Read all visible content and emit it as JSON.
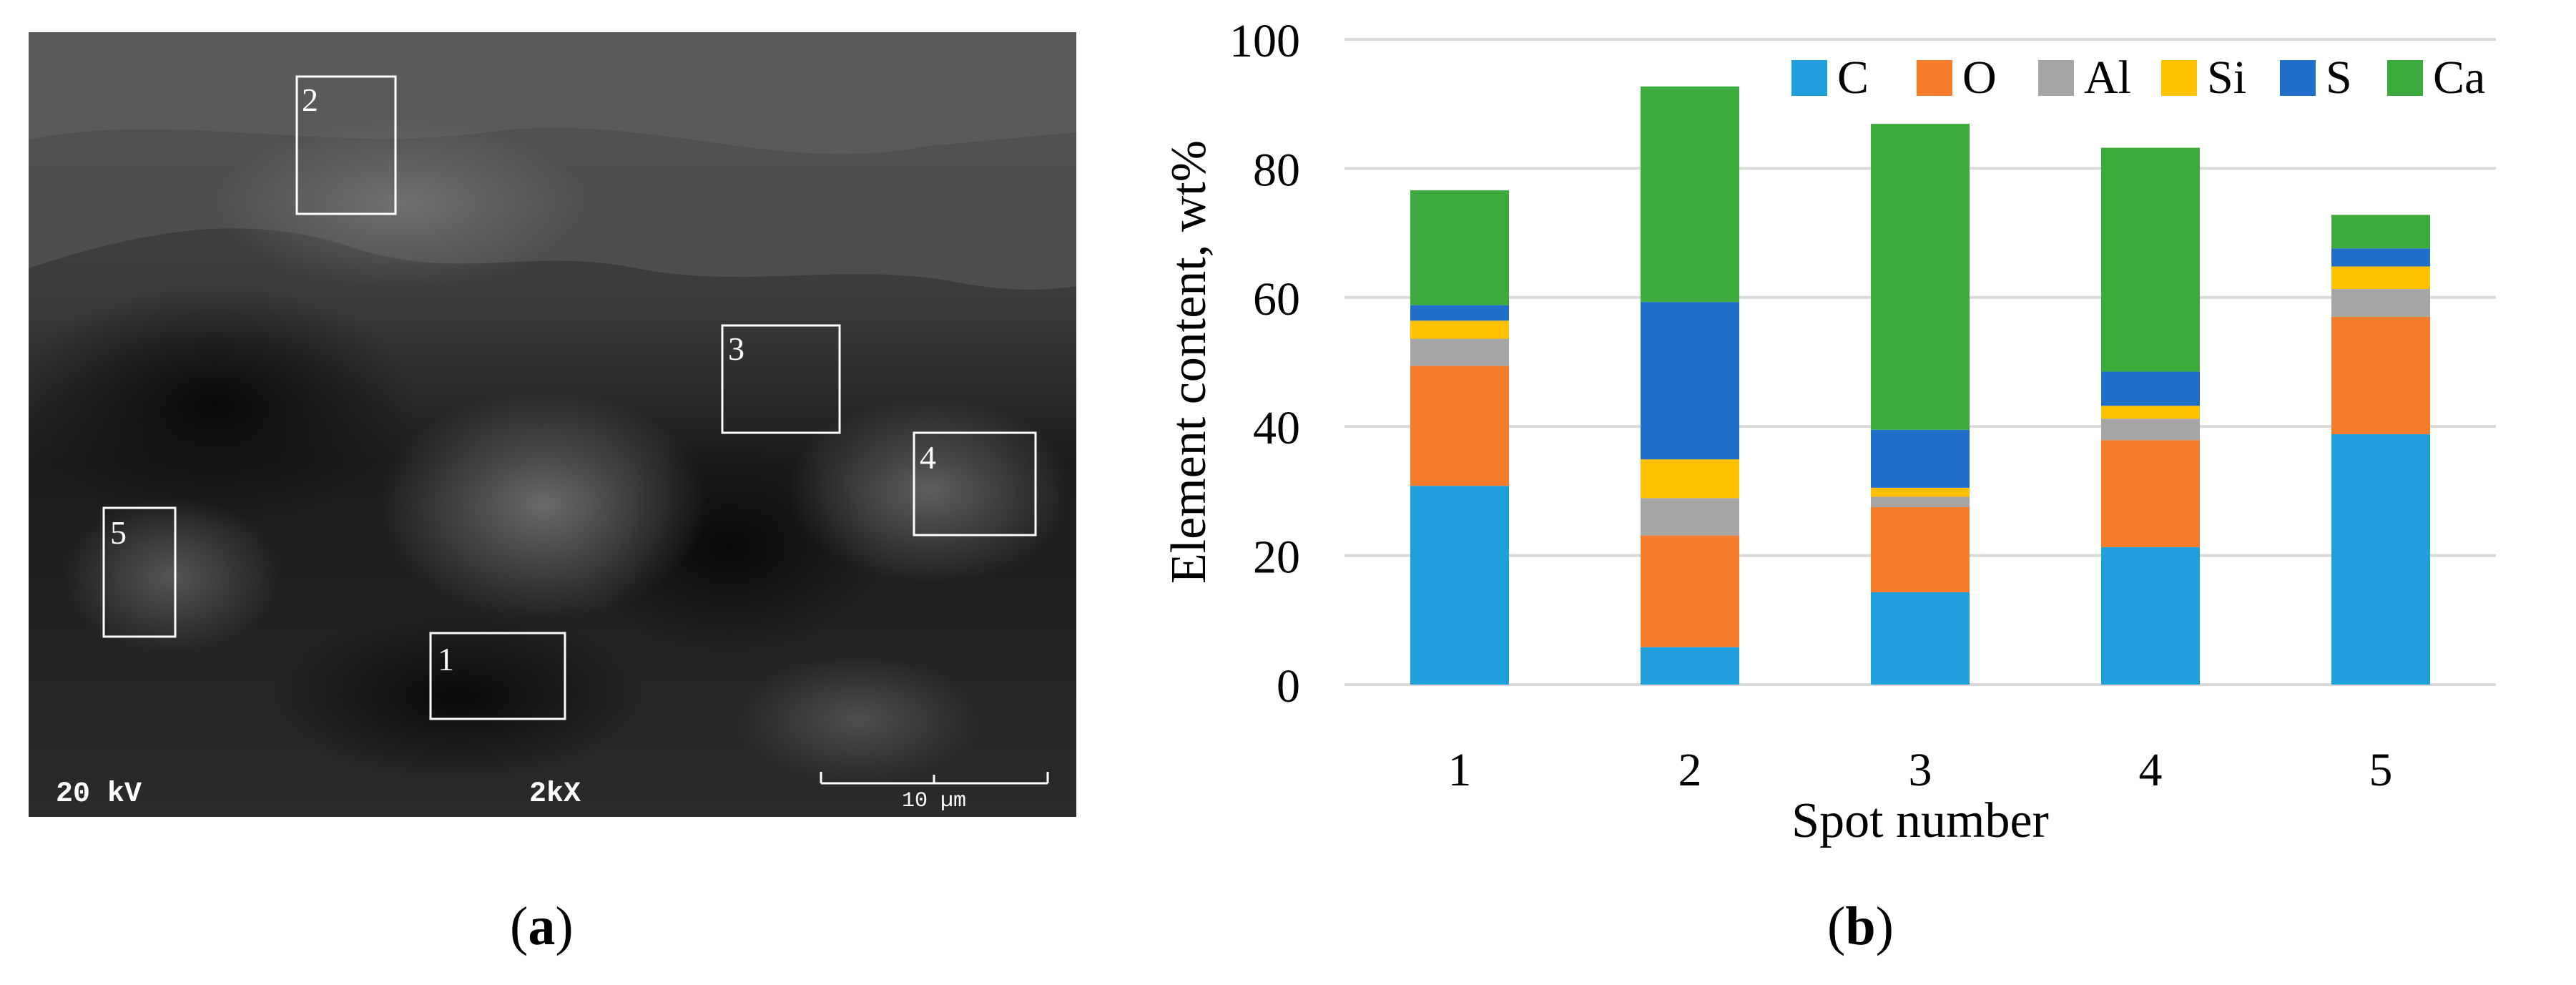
{
  "panel_a": {
    "caption_letter": "a",
    "sem_labels": {
      "voltage": "20 kV",
      "magnification": "2kX",
      "scalebar": "10 µm"
    },
    "spots": [
      "1",
      "2",
      "3",
      "4",
      "5"
    ]
  },
  "panel_b": {
    "caption_letter": "b"
  },
  "chart_data": {
    "type": "bar",
    "stacked": true,
    "categories": [
      "1",
      "2",
      "3",
      "4",
      "5"
    ],
    "xlabel": "Spot number",
    "ylabel": "Element content, wt%",
    "ylim": [
      0,
      100
    ],
    "yticks": [
      0,
      20,
      40,
      60,
      80,
      100
    ],
    "grid": true,
    "legend_position": "top",
    "series": [
      {
        "name": "C",
        "color": "#1f9fdb",
        "values": [
          30.8,
          5.8,
          14.3,
          21.3,
          38.8
        ]
      },
      {
        "name": "O",
        "color": "#f47c2a",
        "values": [
          18.6,
          17.3,
          13.2,
          16.6,
          18.2
        ]
      },
      {
        "name": "Al",
        "color": "#a5a5a5",
        "values": [
          4.2,
          5.8,
          1.6,
          3.3,
          4.3
        ]
      },
      {
        "name": "Si",
        "color": "#ffc000",
        "values": [
          2.8,
          6.0,
          1.4,
          2.0,
          3.5
        ]
      },
      {
        "name": "S",
        "color": "#1f6fc8",
        "values": [
          2.4,
          24.4,
          9.0,
          5.3,
          2.8
        ]
      },
      {
        "name": "Ca",
        "color": "#3daa3d",
        "values": [
          17.8,
          33.4,
          47.4,
          34.7,
          5.2
        ]
      }
    ]
  }
}
